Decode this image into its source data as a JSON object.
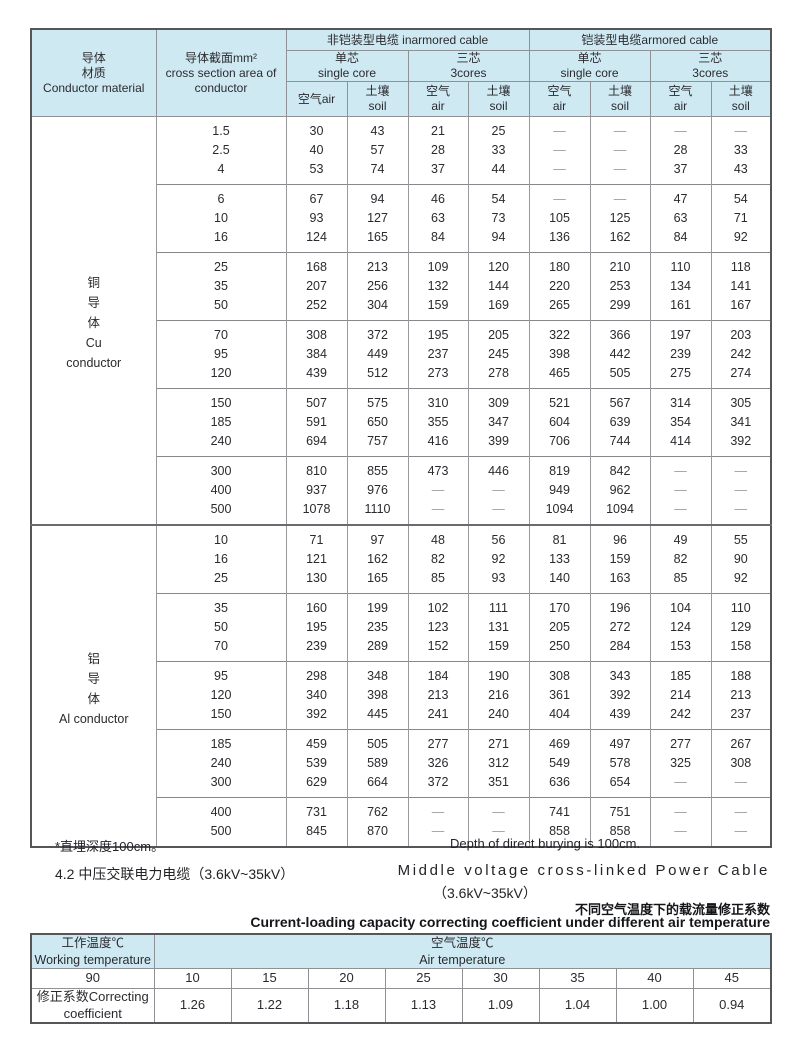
{
  "colors": {
    "header_bg": "#cfe9f3",
    "outer_border": "#55565a",
    "inner_border": "#8f9194",
    "dash": "#9a9c9f",
    "text": "#2a2b2e"
  },
  "main_table": {
    "header": {
      "conductor": [
        "导体",
        "材质",
        "Conductor material"
      ],
      "cross_section": [
        "导体截面mm²",
        "cross section area of",
        "conductor"
      ],
      "inarmored": "非铠装型电缆 inarmored cable",
      "armored": "铠装型电缆armored cable",
      "core_types": [
        [
          "单芯",
          "single core"
        ],
        [
          "三芯",
          "3cores"
        ],
        [
          "单芯",
          "single core"
        ],
        [
          "三芯",
          "3cores"
        ]
      ],
      "env_cols": [
        "空气air",
        [
          "土壤",
          "soil"
        ],
        [
          "空气",
          "air"
        ],
        [
          "土壤",
          "soil"
        ],
        [
          "空气",
          "air"
        ],
        [
          "土壤",
          "soil"
        ],
        [
          "空气",
          "air"
        ],
        [
          "土壤",
          "soil"
        ]
      ]
    },
    "sections": [
      {
        "label_lines": [
          "铜",
          "导",
          "体",
          "Cu",
          "conductor"
        ],
        "groups": [
          {
            "rows": [
              {
                "size": "1.5",
                "values": [
                  "30",
                  "43",
                  "21",
                  "25",
                  "—",
                  "—",
                  "—",
                  "—"
                ]
              },
              {
                "size": "2.5",
                "values": [
                  "40",
                  "57",
                  "28",
                  "33",
                  "—",
                  "—",
                  "28",
                  "33"
                ]
              },
              {
                "size": "4",
                "values": [
                  "53",
                  "74",
                  "37",
                  "44",
                  "—",
                  "—",
                  "37",
                  "43"
                ]
              }
            ]
          },
          {
            "rows": [
              {
                "size": "6",
                "values": [
                  "67",
                  "94",
                  "46",
                  "54",
                  "—",
                  "—",
                  "47",
                  "54"
                ]
              },
              {
                "size": "10",
                "values": [
                  "93",
                  "127",
                  "63",
                  "73",
                  "105",
                  "125",
                  "63",
                  "71"
                ]
              },
              {
                "size": "16",
                "values": [
                  "124",
                  "165",
                  "84",
                  "94",
                  "136",
                  "162",
                  "84",
                  "92"
                ]
              }
            ]
          },
          {
            "rows": [
              {
                "size": "25",
                "values": [
                  "168",
                  "213",
                  "109",
                  "120",
                  "180",
                  "210",
                  "110",
                  "118"
                ]
              },
              {
                "size": "35",
                "values": [
                  "207",
                  "256",
                  "132",
                  "144",
                  "220",
                  "253",
                  "134",
                  "141"
                ]
              },
              {
                "size": "50",
                "values": [
                  "252",
                  "304",
                  "159",
                  "169",
                  "265",
                  "299",
                  "161",
                  "167"
                ]
              }
            ]
          },
          {
            "rows": [
              {
                "size": "70",
                "values": [
                  "308",
                  "372",
                  "195",
                  "205",
                  "322",
                  "366",
                  "197",
                  "203"
                ]
              },
              {
                "size": "95",
                "values": [
                  "384",
                  "449",
                  "237",
                  "245",
                  "398",
                  "442",
                  "239",
                  "242"
                ]
              },
              {
                "size": "120",
                "values": [
                  "439",
                  "512",
                  "273",
                  "278",
                  "465",
                  "505",
                  "275",
                  "274"
                ]
              }
            ]
          },
          {
            "rows": [
              {
                "size": "150",
                "values": [
                  "507",
                  "575",
                  "310",
                  "309",
                  "521",
                  "567",
                  "314",
                  "305"
                ]
              },
              {
                "size": "185",
                "values": [
                  "591",
                  "650",
                  "355",
                  "347",
                  "604",
                  "639",
                  "354",
                  "341"
                ]
              },
              {
                "size": "240",
                "values": [
                  "694",
                  "757",
                  "416",
                  "399",
                  "706",
                  "744",
                  "414",
                  "392"
                ]
              }
            ]
          },
          {
            "rows": [
              {
                "size": "300",
                "values": [
                  "810",
                  "855",
                  "473",
                  "446",
                  "819",
                  "842",
                  "—",
                  "—"
                ]
              },
              {
                "size": "400",
                "values": [
                  "937",
                  "976",
                  "—",
                  "—",
                  "949",
                  "962",
                  "—",
                  "—"
                ]
              },
              {
                "size": "500",
                "values": [
                  "1078",
                  "1110",
                  "—",
                  "—",
                  "1094",
                  "1094",
                  "—",
                  "—"
                ]
              }
            ]
          }
        ]
      },
      {
        "label_lines": [
          "铝",
          "导",
          "体",
          "Al conductor"
        ],
        "groups": [
          {
            "rows": [
              {
                "size": "10",
                "values": [
                  "71",
                  "97",
                  "48",
                  "56",
                  "81",
                  "96",
                  "49",
                  "55"
                ]
              },
              {
                "size": "16",
                "values": [
                  "121",
                  "162",
                  "82",
                  "92",
                  "133",
                  "159",
                  "82",
                  "90"
                ]
              },
              {
                "size": "25",
                "values": [
                  "130",
                  "165",
                  "85",
                  "93",
                  "140",
                  "163",
                  "85",
                  "92"
                ]
              }
            ]
          },
          {
            "rows": [
              {
                "size": "35",
                "values": [
                  "160",
                  "199",
                  "102",
                  "111",
                  "170",
                  "196",
                  "104",
                  "110"
                ]
              },
              {
                "size": "50",
                "values": [
                  "195",
                  "235",
                  "123",
                  "131",
                  "205",
                  "272",
                  "124",
                  "129"
                ]
              },
              {
                "size": "70",
                "values": [
                  "239",
                  "289",
                  "152",
                  "159",
                  "250",
                  "284",
                  "153",
                  "158"
                ]
              }
            ]
          },
          {
            "rows": [
              {
                "size": "95",
                "values": [
                  "298",
                  "348",
                  "184",
                  "190",
                  "308",
                  "343",
                  "185",
                  "188"
                ]
              },
              {
                "size": "120",
                "values": [
                  "340",
                  "398",
                  "213",
                  "216",
                  "361",
                  "392",
                  "214",
                  "213"
                ]
              },
              {
                "size": "150",
                "values": [
                  "392",
                  "445",
                  "241",
                  "240",
                  "404",
                  "439",
                  "242",
                  "237"
                ]
              }
            ]
          },
          {
            "rows": [
              {
                "size": "185",
                "values": [
                  "459",
                  "505",
                  "277",
                  "271",
                  "469",
                  "497",
                  "277",
                  "267"
                ]
              },
              {
                "size": "240",
                "values": [
                  "539",
                  "589",
                  "326",
                  "312",
                  "549",
                  "578",
                  "325",
                  "308"
                ]
              },
              {
                "size": "300",
                "values": [
                  "629",
                  "664",
                  "372",
                  "351",
                  "636",
                  "654",
                  "—",
                  "—"
                ]
              }
            ]
          },
          {
            "rows": [
              {
                "size": "400",
                "values": [
                  "731",
                  "762",
                  "—",
                  "—",
                  "741",
                  "751",
                  "—",
                  "—"
                ]
              },
              {
                "size": "500",
                "values": [
                  "845",
                  "870",
                  "—",
                  "—",
                  "858",
                  "858",
                  "—",
                  "—"
                ]
              }
            ]
          }
        ]
      }
    ]
  },
  "notes": {
    "depth_cn": "*直埋深度100cm。",
    "depth_en": "Depth of direct burying is 100cm."
  },
  "section42": {
    "cn": "4.2 中压交联电力电缆（3.6kV~35kV）",
    "en_line1": "Middle voltage cross-linked Power Cable",
    "en_line2": "（3.6kV~35kV）"
  },
  "coef_title": {
    "cn": "不同空气温度下的载流量修正系数",
    "en": "Current-loading capacity correcting coefficient under different air temperature"
  },
  "coef_table": {
    "working_temp_header": [
      "工作温度℃",
      "Working temperature"
    ],
    "air_temp_header": [
      "空气温度℃",
      "Air temperature"
    ],
    "working_temp_value": "90",
    "air_temps": [
      "10",
      "15",
      "20",
      "25",
      "30",
      "35",
      "40",
      "45"
    ],
    "coef_label": [
      "修正系数Correcting",
      "coefficient"
    ],
    "coefficients": [
      "1.26",
      "1.22",
      "1.18",
      "1.13",
      "1.09",
      "1.04",
      "1.00",
      "0.94"
    ]
  }
}
